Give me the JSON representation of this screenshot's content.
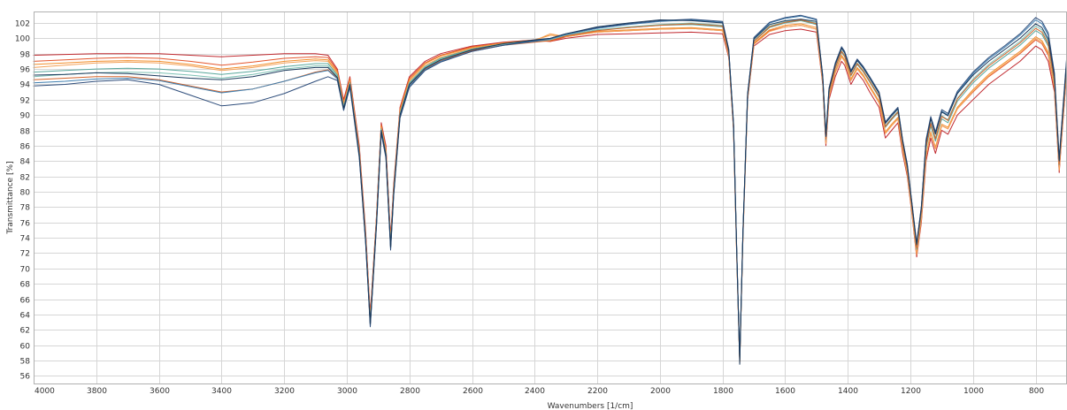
{
  "chart_data": {
    "type": "line",
    "title": "",
    "xlabel": "Wavenumbers [1/cm]",
    "ylabel": "Transmittance [%]",
    "xlim": [
      4000,
      700
    ],
    "ylim": [
      55,
      103.5
    ],
    "x_reversed": true,
    "grid": true,
    "legend": "none",
    "x_ticks": [
      4000,
      3800,
      3600,
      3400,
      3200,
      3000,
      2800,
      2600,
      2400,
      2200,
      2000,
      1800,
      1600,
      1400,
      1200,
      1000,
      800
    ],
    "y_ticks": [
      56,
      58,
      60,
      62,
      64,
      66,
      68,
      70,
      72,
      74,
      76,
      78,
      80,
      82,
      84,
      86,
      88,
      90,
      92,
      94,
      96,
      98,
      100,
      102
    ],
    "x": [
      4000,
      3900,
      3800,
      3700,
      3600,
      3500,
      3400,
      3300,
      3200,
      3100,
      3060,
      3030,
      3010,
      2990,
      2960,
      2940,
      2925,
      2905,
      2890,
      2875,
      2860,
      2850,
      2830,
      2800,
      2750,
      2700,
      2600,
      2500,
      2400,
      2350,
      2300,
      2200,
      2100,
      2000,
      1900,
      1800,
      1780,
      1765,
      1755,
      1745,
      1735,
      1720,
      1700,
      1650,
      1600,
      1550,
      1500,
      1480,
      1470,
      1460,
      1440,
      1420,
      1410,
      1390,
      1370,
      1350,
      1330,
      1300,
      1280,
      1260,
      1240,
      1225,
      1210,
      1195,
      1180,
      1165,
      1150,
      1135,
      1120,
      1100,
      1080,
      1050,
      1000,
      950,
      900,
      850,
      800,
      780,
      760,
      740,
      725,
      715,
      700
    ],
    "series": [
      {
        "color": "#c0282e",
        "values": [
          97.8,
          97.9,
          98.0,
          98.0,
          98.0,
          97.8,
          97.6,
          97.8,
          98.0,
          98.0,
          97.8,
          96.0,
          92.0,
          95.0,
          86.0,
          75.0,
          64.0,
          77.0,
          89.0,
          86.0,
          74.0,
          81.0,
          91.0,
          95.0,
          97.0,
          98.0,
          99.0,
          99.5,
          99.8,
          99.6,
          100.0,
          100.5,
          100.6,
          100.7,
          100.8,
          100.6,
          97.5,
          88.0,
          72.0,
          58.0,
          74.0,
          92.0,
          99.0,
          100.5,
          101.0,
          101.2,
          100.8,
          94.0,
          86.0,
          92.0,
          95.0,
          97.0,
          96.5,
          94.0,
          95.5,
          94.5,
          93.0,
          91.0,
          87.0,
          88.0,
          89.0,
          85.0,
          82.0,
          77.0,
          71.5,
          76.0,
          84.0,
          87.0,
          85.0,
          88.0,
          87.5,
          90.0,
          92.0,
          94.0,
          95.5,
          97.0,
          99.0,
          98.5,
          97.0,
          93.0,
          82.5,
          88.0,
          96.0
        ]
      },
      {
        "color": "#e4572e",
        "values": [
          97.0,
          97.2,
          97.4,
          97.5,
          97.4,
          97.0,
          96.5,
          96.9,
          97.4,
          97.6,
          97.5,
          95.8,
          91.7,
          94.8,
          85.6,
          74.6,
          63.6,
          76.8,
          88.7,
          85.6,
          73.6,
          80.7,
          90.8,
          94.8,
          96.8,
          97.8,
          98.9,
          99.4,
          99.7,
          99.6,
          100.2,
          100.8,
          101.0,
          101.2,
          101.3,
          101.0,
          97.7,
          88.2,
          72.3,
          57.8,
          74.2,
          92.2,
          99.3,
          101.0,
          101.5,
          101.7,
          101.2,
          94.3,
          86.3,
          92.4,
          95.5,
          97.6,
          97.0,
          94.5,
          96.0,
          95.0,
          93.6,
          91.6,
          87.6,
          88.6,
          89.5,
          85.4,
          82.3,
          77.2,
          71.8,
          76.4,
          84.6,
          87.6,
          85.6,
          88.6,
          88.2,
          90.8,
          93.0,
          95.0,
          96.5,
          98.0,
          99.8,
          99.3,
          97.8,
          93.5,
          82.8,
          88.4,
          96.4
        ]
      },
      {
        "color": "#f28e2b",
        "values": [
          96.6,
          96.8,
          97.0,
          97.1,
          97.0,
          96.6,
          96.0,
          96.4,
          97.0,
          97.3,
          97.2,
          95.6,
          91.5,
          94.6,
          85.4,
          74.4,
          63.4,
          76.6,
          88.6,
          85.4,
          73.4,
          80.5,
          90.6,
          94.6,
          96.7,
          97.7,
          98.8,
          99.4,
          99.8,
          100.4,
          100.3,
          100.9,
          101.1,
          101.3,
          101.4,
          101.1,
          97.8,
          88.3,
          72.4,
          57.9,
          74.3,
          92.3,
          99.4,
          101.1,
          101.7,
          101.9,
          101.4,
          94.4,
          86.5,
          92.6,
          95.7,
          97.8,
          97.2,
          94.7,
          96.2,
          95.2,
          93.8,
          91.8,
          87.8,
          88.8,
          89.7,
          85.6,
          82.5,
          77.4,
          72.0,
          76.6,
          84.8,
          87.8,
          85.8,
          88.8,
          88.4,
          91.0,
          93.3,
          95.3,
          96.8,
          98.3,
          100.2,
          99.7,
          98.2,
          93.8,
          83.0,
          88.6,
          96.6
        ]
      },
      {
        "color": "#f4a259",
        "values": [
          96.2,
          96.5,
          96.8,
          96.9,
          96.8,
          96.4,
          95.8,
          96.2,
          96.8,
          97.1,
          97.0,
          95.4,
          91.3,
          94.4,
          85.2,
          74.2,
          63.2,
          76.4,
          88.4,
          85.2,
          73.2,
          80.3,
          90.4,
          94.4,
          96.5,
          97.5,
          98.7,
          99.3,
          99.7,
          100.6,
          100.2,
          100.8,
          101.0,
          101.2,
          101.3,
          101.0,
          97.7,
          88.2,
          72.2,
          57.7,
          74.1,
          92.1,
          99.2,
          100.9,
          101.5,
          101.7,
          101.2,
          94.2,
          86.3,
          92.4,
          95.5,
          97.6,
          97.0,
          94.5,
          96.0,
          95.0,
          93.6,
          91.6,
          87.6,
          88.6,
          89.5,
          85.4,
          82.3,
          77.2,
          71.8,
          76.4,
          84.6,
          87.6,
          85.6,
          88.6,
          88.2,
          90.8,
          93.1,
          95.1,
          96.6,
          98.1,
          100.0,
          99.5,
          98.0,
          93.6,
          82.8,
          88.4,
          96.4
        ]
      },
      {
        "color": "#59a89c",
        "values": [
          95.6,
          95.8,
          96.0,
          96.1,
          96.0,
          95.7,
          95.3,
          95.7,
          96.3,
          96.7,
          96.7,
          95.2,
          91.1,
          94.2,
          85.0,
          74.0,
          63.0,
          76.2,
          88.2,
          85.0,
          73.0,
          80.1,
          90.2,
          94.2,
          96.3,
          97.4,
          98.6,
          99.3,
          99.7,
          99.9,
          100.4,
          101.1,
          101.4,
          101.7,
          101.8,
          101.5,
          98.0,
          88.5,
          72.5,
          58.0,
          74.4,
          92.4,
          99.6,
          101.4,
          102.0,
          102.3,
          101.8,
          94.6,
          86.8,
          92.9,
          96.1,
          98.2,
          97.6,
          95.1,
          96.6,
          95.6,
          94.3,
          92.3,
          88.4,
          89.4,
          90.3,
          86.1,
          82.9,
          77.8,
          72.5,
          77.2,
          85.6,
          88.6,
          86.6,
          89.5,
          89.0,
          91.8,
          94.2,
          96.1,
          97.6,
          99.1,
          101.0,
          100.5,
          99.0,
          94.3,
          83.5,
          89.0,
          97.0
        ]
      },
      {
        "color": "#7cc0b3",
        "values": [
          95.0,
          95.3,
          95.5,
          95.6,
          95.5,
          95.2,
          94.8,
          95.3,
          96.0,
          96.4,
          96.4,
          95.0,
          91.0,
          94.1,
          84.9,
          73.9,
          62.9,
          76.1,
          88.1,
          84.9,
          72.9,
          80.0,
          90.1,
          94.1,
          96.2,
          97.3,
          98.5,
          99.2,
          99.6,
          99.8,
          100.4,
          101.1,
          101.5,
          101.8,
          102.0,
          101.7,
          98.2,
          88.6,
          72.6,
          58.1,
          74.5,
          92.5,
          99.7,
          101.6,
          102.2,
          102.5,
          102.0,
          94.8,
          87.0,
          93.1,
          96.3,
          98.4,
          97.8,
          95.3,
          96.8,
          95.8,
          94.5,
          92.5,
          88.6,
          89.6,
          90.5,
          86.3,
          83.1,
          78.0,
          72.8,
          77.5,
          86.0,
          89.0,
          87.0,
          89.9,
          89.4,
          92.2,
          94.7,
          96.6,
          98.1,
          99.6,
          101.6,
          101.1,
          99.6,
          94.7,
          83.8,
          89.3,
          97.3
        ]
      },
      {
        "color": "#d4632a",
        "values": [
          94.6,
          94.8,
          95.0,
          95.0,
          94.6,
          93.8,
          93.0,
          93.4,
          94.4,
          95.6,
          95.9,
          94.8,
          90.8,
          93.9,
          84.7,
          73.7,
          62.7,
          75.9,
          87.9,
          84.7,
          72.7,
          79.8,
          89.9,
          93.9,
          96.0,
          97.1,
          98.4,
          99.1,
          99.5,
          99.7,
          100.3,
          101.0,
          101.4,
          101.7,
          101.9,
          101.6,
          98.1,
          88.5,
          72.5,
          58.0,
          74.4,
          92.4,
          99.6,
          101.5,
          102.1,
          102.4,
          101.9,
          94.7,
          86.9,
          93.0,
          96.2,
          98.3,
          97.7,
          95.2,
          96.7,
          95.7,
          94.4,
          92.4,
          88.5,
          89.5,
          90.4,
          86.2,
          83.0,
          77.9,
          72.7,
          77.4,
          85.9,
          88.9,
          86.9,
          89.8,
          89.3,
          92.1,
          94.5,
          96.4,
          97.9,
          99.4,
          101.3,
          100.8,
          99.3,
          94.5,
          83.6,
          89.1,
          97.1
        ]
      },
      {
        "color": "#3f7fb0",
        "values": [
          94.2,
          94.4,
          94.7,
          94.8,
          94.5,
          93.7,
          92.9,
          93.4,
          94.4,
          95.5,
          95.8,
          94.7,
          90.7,
          93.8,
          84.6,
          73.6,
          62.6,
          75.8,
          87.8,
          84.6,
          72.6,
          79.7,
          89.8,
          93.8,
          95.9,
          97.0,
          98.3,
          99.1,
          99.6,
          99.9,
          100.5,
          101.3,
          101.8,
          102.2,
          102.4,
          102.1,
          98.5,
          88.8,
          72.8,
          58.2,
          74.7,
          92.7,
          100.0,
          102.0,
          102.6,
          102.9,
          102.4,
          95.1,
          87.3,
          93.4,
          96.7,
          98.8,
          98.2,
          95.7,
          97.2,
          96.2,
          94.9,
          92.9,
          89.0,
          90.0,
          90.9,
          86.7,
          83.5,
          78.4,
          73.2,
          78.0,
          86.6,
          89.6,
          87.6,
          90.5,
          90.0,
          92.9,
          95.4,
          97.3,
          98.8,
          100.4,
          102.4,
          101.9,
          100.4,
          95.3,
          84.2,
          89.7,
          97.8
        ]
      },
      {
        "color": "#2e4d7b",
        "values": [
          93.8,
          94.0,
          94.4,
          94.6,
          94.0,
          92.6,
          91.2,
          91.6,
          92.8,
          94.4,
          95.0,
          94.5,
          90.6,
          93.6,
          84.4,
          73.4,
          62.4,
          75.6,
          87.6,
          84.4,
          72.4,
          79.5,
          89.6,
          93.6,
          95.8,
          96.9,
          98.3,
          99.1,
          99.7,
          100.0,
          100.6,
          101.4,
          101.9,
          102.3,
          102.5,
          102.2,
          98.6,
          88.9,
          72.9,
          58.3,
          74.8,
          92.8,
          100.1,
          102.1,
          102.7,
          103.0,
          102.5,
          95.2,
          87.4,
          93.5,
          96.8,
          98.9,
          98.3,
          95.8,
          97.3,
          96.3,
          95.0,
          93.0,
          89.1,
          90.1,
          91.0,
          86.8,
          83.6,
          78.5,
          73.3,
          78.1,
          86.8,
          89.8,
          87.8,
          90.7,
          90.2,
          93.1,
          95.6,
          97.5,
          99.0,
          100.6,
          102.7,
          102.2,
          100.7,
          95.5,
          84.4,
          89.9,
          98.0
        ]
      },
      {
        "color": "#1b3a5c",
        "values": [
          95.2,
          95.3,
          95.5,
          95.4,
          95.1,
          94.8,
          94.6,
          95.0,
          95.8,
          96.2,
          96.2,
          94.9,
          90.9,
          94.0,
          84.8,
          73.8,
          62.8,
          76.0,
          88.0,
          84.8,
          72.8,
          79.9,
          90.0,
          94.0,
          96.1,
          97.2,
          98.5,
          99.3,
          99.8,
          100.0,
          100.6,
          101.5,
          102.0,
          102.4,
          102.3,
          102.0,
          98.4,
          88.7,
          72.7,
          57.5,
          74.6,
          92.6,
          99.9,
          101.8,
          102.3,
          102.5,
          102.2,
          95.0,
          87.2,
          93.3,
          96.6,
          98.7,
          98.1,
          95.6,
          97.1,
          96.1,
          94.8,
          92.8,
          88.9,
          89.9,
          90.8,
          86.6,
          83.4,
          78.3,
          73.1,
          77.9,
          86.5,
          89.5,
          87.5,
          90.4,
          89.9,
          92.8,
          95.2,
          97.0,
          98.5,
          100.0,
          101.9,
          101.4,
          99.9,
          95.0,
          84.0,
          89.5,
          97.5
        ]
      }
    ]
  }
}
